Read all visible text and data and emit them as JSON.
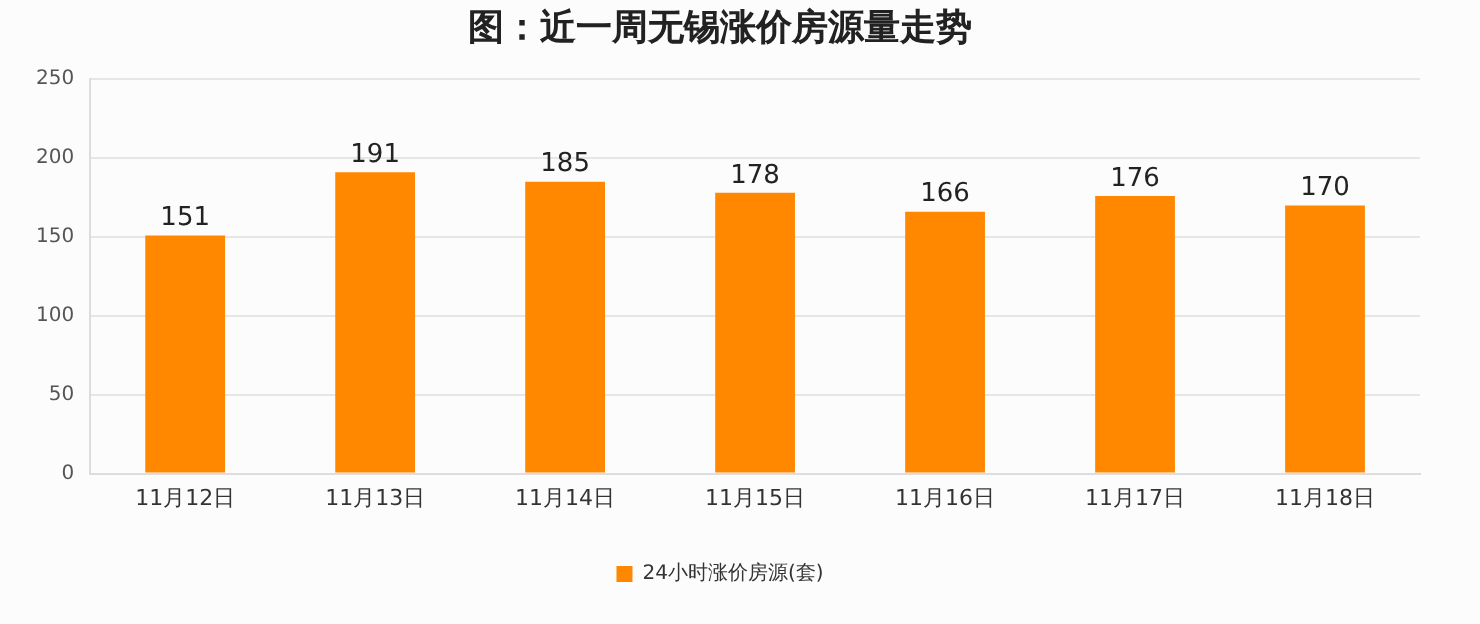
{
  "chart_data": {
    "type": "bar",
    "title": "图：近一周无锡涨价房源量走势",
    "categories": [
      "11月12日",
      "11月13日",
      "11月14日",
      "11月15日",
      "11月16日",
      "11月17日",
      "11月18日"
    ],
    "series": [
      {
        "name": "24小时涨价房源(套)",
        "color": "#ff8800",
        "values": [
          151,
          191,
          185,
          178,
          166,
          176,
          170
        ]
      }
    ],
    "ylim": [
      0,
      250
    ],
    "yticks": [
      0,
      50,
      100,
      150,
      200,
      250
    ],
    "grid": "y",
    "legend": "bottom",
    "data_labels": true
  }
}
